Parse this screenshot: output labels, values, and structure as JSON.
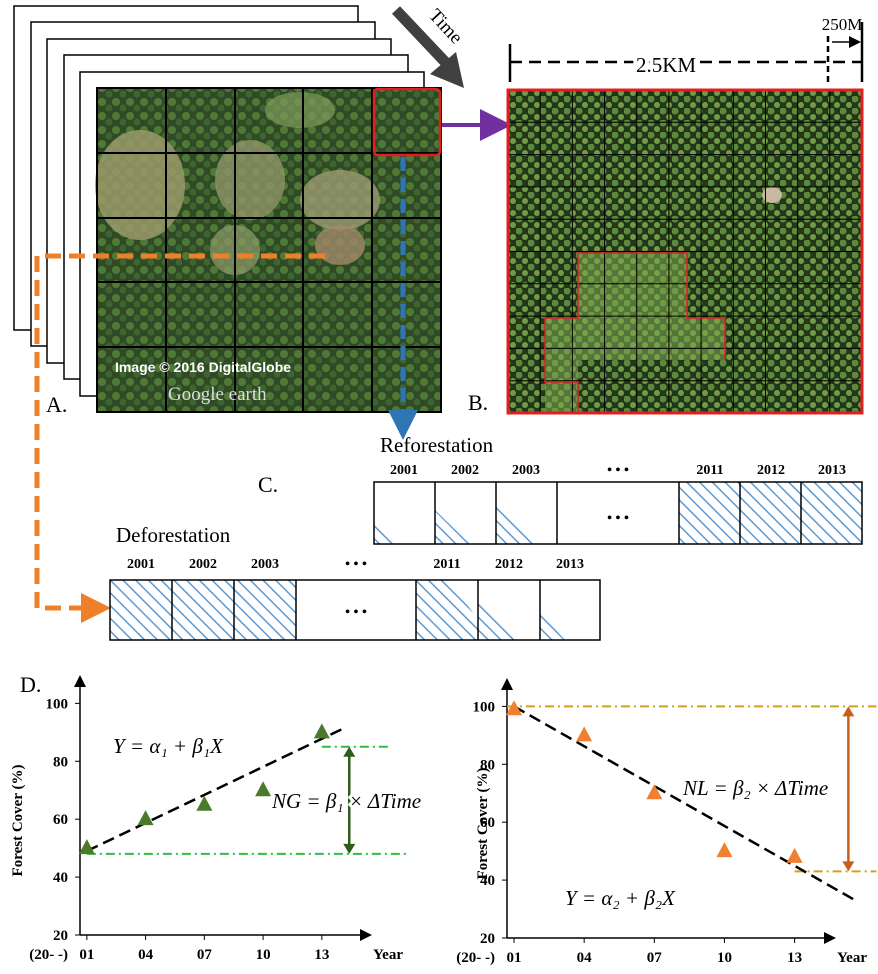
{
  "panel_a": {
    "label": "A.",
    "time": "Time",
    "credit": "Image © 2016 DigitalGlobe",
    "brand": "Google earth"
  },
  "panel_b": {
    "label": "B.",
    "scale_small": "250M",
    "scale_large": "2.5KM"
  },
  "panel_c": {
    "label": "C.",
    "gap": "• • •",
    "reforestation": {
      "title": "Reforestation",
      "years": [
        "2001",
        "2002",
        "2003",
        "2011",
        "2012",
        "2013"
      ]
    },
    "deforestation": {
      "title": "Deforestation",
      "years": [
        "2001",
        "2002",
        "2003",
        "2011",
        "2012",
        "2013"
      ]
    }
  },
  "panel_d": {
    "label": "D."
  },
  "chart_data": [
    {
      "type": "scatter",
      "ylabel": "Forest Cover (%)",
      "x_prefix": "(20- -)",
      "xlabel": "Year",
      "x": [
        1,
        4,
        7,
        10,
        13
      ],
      "values": [
        50,
        60,
        65,
        70,
        90
      ],
      "color": "#4a7a2a",
      "xlim": [
        0.65,
        15
      ],
      "ylim": [
        20,
        106
      ],
      "xticks": [
        {
          "value": 1,
          "label": "01"
        },
        {
          "value": 4,
          "label": "04"
        },
        {
          "value": 7,
          "label": "07"
        },
        {
          "value": 10,
          "label": "10"
        },
        {
          "value": 13,
          "label": "13"
        }
      ],
      "yticks": [
        20,
        40,
        60,
        80,
        100
      ],
      "trend": {
        "x": [
          1,
          14
        ],
        "values": [
          49,
          91
        ]
      },
      "hlines": [
        48,
        85
      ],
      "hline_color": "#2fbf3f",
      "arrow_color": "#2e5a1a",
      "annotations": [
        "Y = α₁ + β₁X",
        "NG = β₁ × ΔTime"
      ]
    },
    {
      "type": "scatter",
      "ylabel": "Forest Cover (%)",
      "x_prefix": "(20- -)",
      "xlabel": "Year",
      "x": [
        1,
        4,
        7,
        10,
        13
      ],
      "values": [
        99,
        90,
        70,
        50,
        48
      ],
      "color": "#f08030",
      "xlim": [
        0.7,
        14.3
      ],
      "ylim": [
        20,
        106
      ],
      "xticks": [
        {
          "value": 1,
          "label": "01"
        },
        {
          "value": 4,
          "label": "04"
        },
        {
          "value": 7,
          "label": "07"
        },
        {
          "value": 10,
          "label": "10"
        },
        {
          "value": 13,
          "label": "13"
        }
      ],
      "yticks": [
        20,
        40,
        60,
        80,
        100
      ],
      "trend": {
        "x": [
          1,
          15.6
        ],
        "values": [
          100,
          33
        ]
      },
      "hlines": [
        100,
        43
      ],
      "hline_color": "#d4a020",
      "arrow_color": "#c8601a",
      "annotations": [
        "NL = β₂ × ΔTime",
        "Y = α₂ + β₂X"
      ]
    }
  ]
}
